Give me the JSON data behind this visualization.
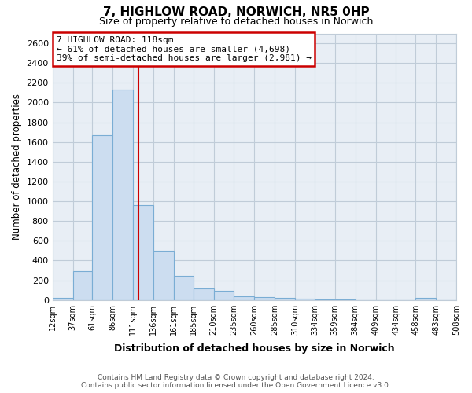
{
  "title": "7, HIGHLOW ROAD, NORWICH, NR5 0HP",
  "subtitle": "Size of property relative to detached houses in Norwich",
  "xlabel": "Distribution of detached houses by size in Norwich",
  "ylabel": "Number of detached properties",
  "bar_fill_color": "#ccddf0",
  "bar_edge_color": "#7aadd4",
  "marker_line_color": "#cc0000",
  "marker_value": 118,
  "bin_edges": [
    12,
    37,
    61,
    86,
    111,
    136,
    161,
    185,
    210,
    235,
    260,
    285,
    310,
    334,
    359,
    384,
    409,
    434,
    458,
    483,
    508
  ],
  "values": [
    20,
    290,
    1670,
    2130,
    960,
    500,
    245,
    120,
    95,
    40,
    30,
    20,
    15,
    3,
    2,
    1,
    1,
    0,
    20,
    0
  ],
  "ylim": [
    0,
    2700
  ],
  "yticks": [
    0,
    200,
    400,
    600,
    800,
    1000,
    1200,
    1400,
    1600,
    1800,
    2000,
    2200,
    2400,
    2600
  ],
  "xtick_labels": [
    "12sqm",
    "37sqm",
    "61sqm",
    "86sqm",
    "111sqm",
    "136sqm",
    "161sqm",
    "185sqm",
    "210sqm",
    "235sqm",
    "260sqm",
    "285sqm",
    "310sqm",
    "334sqm",
    "359sqm",
    "384sqm",
    "409sqm",
    "434sqm",
    "458sqm",
    "483sqm",
    "508sqm"
  ],
  "annotation_title": "7 HIGHLOW ROAD: 118sqm",
  "annotation_line1": "← 61% of detached houses are smaller (4,698)",
  "annotation_line2": "39% of semi-detached houses are larger (2,981) →",
  "annotation_box_color": "#ffffff",
  "annotation_box_edgecolor": "#cc0000",
  "footer_line1": "Contains HM Land Registry data © Crown copyright and database right 2024.",
  "footer_line2": "Contains public sector information licensed under the Open Government Licence v3.0.",
  "background_color": "#ffffff",
  "plot_bg_color": "#e8eef5",
  "grid_color": "#c0ccd8"
}
